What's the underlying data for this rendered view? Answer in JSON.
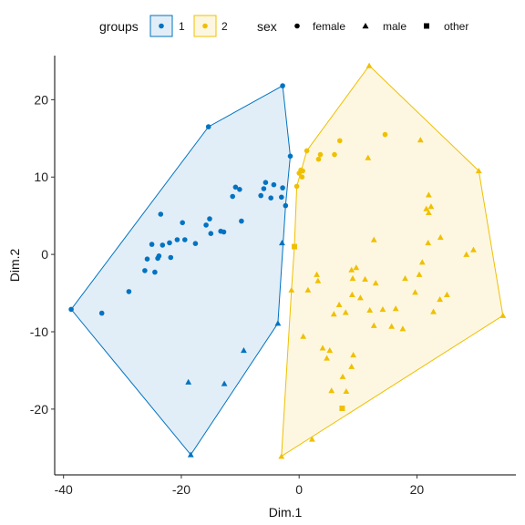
{
  "chart_data": {
    "type": "scatter",
    "xlabel": "Dim.1",
    "ylabel": "Dim.2",
    "xlim": [
      -41.5,
      36.8
    ],
    "ylim": [
      -28.5,
      25.7
    ],
    "xticks": [
      -40,
      -20,
      0,
      20
    ],
    "yticks": [
      -20,
      -10,
      0,
      10,
      20
    ],
    "grid": false,
    "legend_position": "top",
    "legend": {
      "groups_title": "groups",
      "groups": [
        {
          "label": "1",
          "color": "#0073C2"
        },
        {
          "label": "2",
          "color": "#EFC000"
        }
      ],
      "sex_title": "sex",
      "sex": [
        {
          "label": "female",
          "shape": "circle"
        },
        {
          "label": "male",
          "shape": "triangle"
        },
        {
          "label": "other",
          "shape": "square"
        }
      ]
    },
    "series": [
      {
        "name": "1",
        "color": "#0073C2",
        "fill": "#E2EEF7",
        "hull": [
          [
            -38.7,
            -7.1
          ],
          [
            -15.4,
            16.5
          ],
          [
            -2.8,
            21.8
          ],
          [
            -1.5,
            12.7
          ],
          [
            -2.3,
            6.3
          ],
          [
            -3.6,
            -8.9
          ],
          [
            -18.4,
            -25.9
          ]
        ],
        "points": [
          {
            "x": -38.7,
            "y": -7.1,
            "sex": "female"
          },
          {
            "x": -33.5,
            "y": -7.6,
            "sex": "female"
          },
          {
            "x": -28.9,
            "y": -4.8,
            "sex": "female"
          },
          {
            "x": -26.2,
            "y": -2.1,
            "sex": "female"
          },
          {
            "x": -25.8,
            "y": -0.6,
            "sex": "female"
          },
          {
            "x": -25.0,
            "y": 1.3,
            "sex": "female"
          },
          {
            "x": -24.5,
            "y": -2.3,
            "sex": "female"
          },
          {
            "x": -24.0,
            "y": -0.5,
            "sex": "female"
          },
          {
            "x": -23.8,
            "y": -0.2,
            "sex": "female"
          },
          {
            "x": -23.5,
            "y": 5.2,
            "sex": "female"
          },
          {
            "x": -23.2,
            "y": 1.2,
            "sex": "female"
          },
          {
            "x": -22.0,
            "y": 1.5,
            "sex": "female"
          },
          {
            "x": -21.8,
            "y": -0.4,
            "sex": "female"
          },
          {
            "x": -20.7,
            "y": 1.9,
            "sex": "female"
          },
          {
            "x": -19.8,
            "y": 4.1,
            "sex": "female"
          },
          {
            "x": -19.4,
            "y": 1.9,
            "sex": "female"
          },
          {
            "x": -17.6,
            "y": 1.4,
            "sex": "female"
          },
          {
            "x": -15.8,
            "y": 3.8,
            "sex": "female"
          },
          {
            "x": -15.2,
            "y": 4.6,
            "sex": "female"
          },
          {
            "x": -15.0,
            "y": 2.7,
            "sex": "female"
          },
          {
            "x": -13.3,
            "y": 3.0,
            "sex": "female"
          },
          {
            "x": -12.8,
            "y": 2.9,
            "sex": "female"
          },
          {
            "x": -11.3,
            "y": 7.5,
            "sex": "female"
          },
          {
            "x": -10.8,
            "y": 8.7,
            "sex": "female"
          },
          {
            "x": -10.1,
            "y": 8.4,
            "sex": "female"
          },
          {
            "x": -9.8,
            "y": 4.3,
            "sex": "female"
          },
          {
            "x": -6.5,
            "y": 7.6,
            "sex": "female"
          },
          {
            "x": -6.0,
            "y": 8.5,
            "sex": "female"
          },
          {
            "x": -5.7,
            "y": 9.3,
            "sex": "female"
          },
          {
            "x": -4.8,
            "y": 7.3,
            "sex": "female"
          },
          {
            "x": -4.3,
            "y": 9.0,
            "sex": "female"
          },
          {
            "x": -3.0,
            "y": 7.4,
            "sex": "female"
          },
          {
            "x": -2.8,
            "y": 8.6,
            "sex": "female"
          },
          {
            "x": -2.3,
            "y": 6.3,
            "sex": "female"
          },
          {
            "x": -1.5,
            "y": 12.7,
            "sex": "female"
          },
          {
            "x": -15.4,
            "y": 16.5,
            "sex": "female"
          },
          {
            "x": -2.8,
            "y": 21.8,
            "sex": "female"
          },
          {
            "x": -18.4,
            "y": -25.9,
            "sex": "male"
          },
          {
            "x": -18.8,
            "y": -16.5,
            "sex": "male"
          },
          {
            "x": -12.7,
            "y": -16.7,
            "sex": "male"
          },
          {
            "x": -9.4,
            "y": -12.4,
            "sex": "male"
          },
          {
            "x": -3.6,
            "y": -8.9,
            "sex": "male"
          },
          {
            "x": -2.9,
            "y": 1.5,
            "sex": "male"
          }
        ]
      },
      {
        "name": "2",
        "color": "#EFC000",
        "fill": "#FDF7E1",
        "hull": [
          [
            11.9,
            24.4
          ],
          [
            30.5,
            10.8
          ],
          [
            34.6,
            -7.9
          ],
          [
            -3.0,
            -26.1
          ],
          [
            -1.3,
            -4.6
          ],
          [
            -0.8,
            1.0
          ],
          [
            -0.4,
            8.8
          ],
          [
            1.3,
            13.4
          ]
        ],
        "points": [
          {
            "x": 1.3,
            "y": 13.4,
            "sex": "female"
          },
          {
            "x": 3.6,
            "y": 12.9,
            "sex": "female"
          },
          {
            "x": 3.3,
            "y": 12.3,
            "sex": "female"
          },
          {
            "x": 6.0,
            "y": 12.9,
            "sex": "female"
          },
          {
            "x": 6.9,
            "y": 14.7,
            "sex": "female"
          },
          {
            "x": 14.6,
            "y": 15.5,
            "sex": "female"
          },
          {
            "x": -0.4,
            "y": 8.8,
            "sex": "female"
          },
          {
            "x": 0.0,
            "y": 10.5,
            "sex": "female"
          },
          {
            "x": 0.3,
            "y": 10.9,
            "sex": "female"
          },
          {
            "x": 0.5,
            "y": 10.0,
            "sex": "female"
          },
          {
            "x": 0.6,
            "y": 10.8,
            "sex": "female"
          },
          {
            "x": 11.9,
            "y": 24.4,
            "sex": "male"
          },
          {
            "x": 20.6,
            "y": 14.8,
            "sex": "male"
          },
          {
            "x": 30.5,
            "y": 10.8,
            "sex": "male"
          },
          {
            "x": 11.7,
            "y": 12.5,
            "sex": "male"
          },
          {
            "x": 22.0,
            "y": 7.7,
            "sex": "male"
          },
          {
            "x": 22.4,
            "y": 6.2,
            "sex": "male"
          },
          {
            "x": 21.6,
            "y": 5.9,
            "sex": "male"
          },
          {
            "x": 22.0,
            "y": 5.4,
            "sex": "male"
          },
          {
            "x": 12.7,
            "y": 1.9,
            "sex": "male"
          },
          {
            "x": 21.9,
            "y": 1.5,
            "sex": "male"
          },
          {
            "x": 24.0,
            "y": 2.2,
            "sex": "male"
          },
          {
            "x": 29.6,
            "y": 0.6,
            "sex": "male"
          },
          {
            "x": 28.4,
            "y": 0.0,
            "sex": "male"
          },
          {
            "x": 20.9,
            "y": -1.0,
            "sex": "male"
          },
          {
            "x": 34.6,
            "y": -7.9,
            "sex": "male"
          },
          {
            "x": 3.0,
            "y": -2.6,
            "sex": "male"
          },
          {
            "x": 3.2,
            "y": -3.4,
            "sex": "male"
          },
          {
            "x": 8.9,
            "y": -2.0,
            "sex": "male"
          },
          {
            "x": 9.7,
            "y": -1.7,
            "sex": "male"
          },
          {
            "x": 9.1,
            "y": -3.1,
            "sex": "male"
          },
          {
            "x": 11.2,
            "y": -3.2,
            "sex": "male"
          },
          {
            "x": 13.0,
            "y": -3.7,
            "sex": "male"
          },
          {
            "x": 18.0,
            "y": -3.1,
            "sex": "male"
          },
          {
            "x": 20.4,
            "y": -2.6,
            "sex": "male"
          },
          {
            "x": 19.7,
            "y": -4.9,
            "sex": "male"
          },
          {
            "x": 23.9,
            "y": -5.8,
            "sex": "male"
          },
          {
            "x": 25.1,
            "y": -5.2,
            "sex": "male"
          },
          {
            "x": 22.8,
            "y": -7.4,
            "sex": "male"
          },
          {
            "x": 1.5,
            "y": -4.6,
            "sex": "male"
          },
          {
            "x": 10.4,
            "y": -5.6,
            "sex": "male"
          },
          {
            "x": 9.0,
            "y": -5.2,
            "sex": "male"
          },
          {
            "x": 6.8,
            "y": -6.5,
            "sex": "male"
          },
          {
            "x": 5.9,
            "y": -7.7,
            "sex": "male"
          },
          {
            "x": 7.9,
            "y": -7.5,
            "sex": "male"
          },
          {
            "x": 12.0,
            "y": -7.2,
            "sex": "male"
          },
          {
            "x": 14.2,
            "y": -7.1,
            "sex": "male"
          },
          {
            "x": 16.4,
            "y": -7.0,
            "sex": "male"
          },
          {
            "x": 15.7,
            "y": -9.3,
            "sex": "male"
          },
          {
            "x": 12.7,
            "y": -9.2,
            "sex": "male"
          },
          {
            "x": 17.6,
            "y": -9.6,
            "sex": "male"
          },
          {
            "x": 0.7,
            "y": -10.6,
            "sex": "male"
          },
          {
            "x": 4.0,
            "y": -12.1,
            "sex": "male"
          },
          {
            "x": 5.2,
            "y": -12.4,
            "sex": "male"
          },
          {
            "x": 9.2,
            "y": -13.0,
            "sex": "male"
          },
          {
            "x": 4.7,
            "y": -13.4,
            "sex": "male"
          },
          {
            "x": 8.9,
            "y": -14.5,
            "sex": "male"
          },
          {
            "x": 7.4,
            "y": -15.8,
            "sex": "male"
          },
          {
            "x": 8.0,
            "y": -17.7,
            "sex": "male"
          },
          {
            "x": 5.5,
            "y": -17.6,
            "sex": "male"
          },
          {
            "x": 2.2,
            "y": -23.9,
            "sex": "male"
          },
          {
            "x": -3.0,
            "y": -26.1,
            "sex": "male"
          },
          {
            "x": -1.3,
            "y": -4.6,
            "sex": "male"
          },
          {
            "x": -0.8,
            "y": 1.0,
            "sex": "square"
          },
          {
            "x": 7.3,
            "y": -19.9,
            "sex": "square"
          }
        ]
      }
    ]
  }
}
